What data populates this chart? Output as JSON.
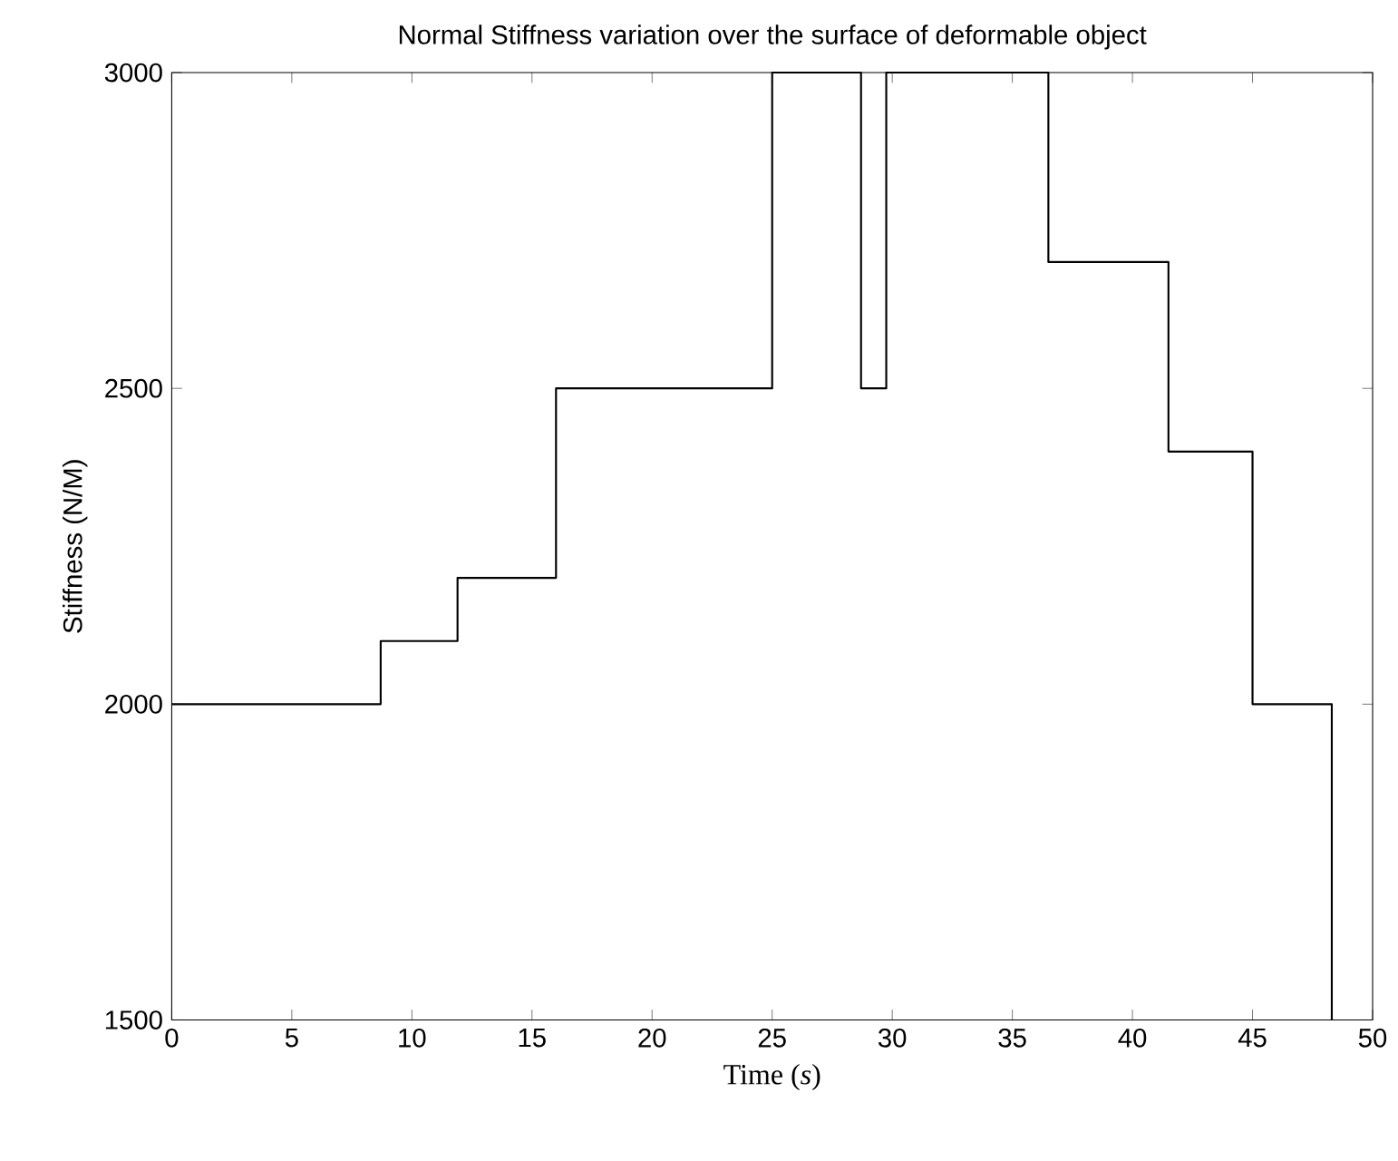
{
  "chart_data": {
    "type": "step",
    "title": "Normal Stiffness variation over the surface of deformable object",
    "xlabel": "Time (*s*)",
    "ylabel": "Stiffness (N/M)",
    "x": [
      0,
      8.7,
      11.9,
      16,
      25,
      28.7,
      29.75,
      36.5,
      41.5,
      45,
      48.3
    ],
    "values": [
      2000,
      2100,
      2200,
      2500,
      3000,
      2500,
      3000,
      2700,
      2400,
      2000,
      1500
    ],
    "color": "#000000",
    "xlim": [
      0,
      50
    ],
    "xticks": [
      0,
      5,
      10,
      15,
      20,
      25,
      30,
      35,
      40,
      45,
      50
    ],
    "ylim": [
      1500,
      3000
    ],
    "yticks": [
      1500,
      2000,
      2500,
      3000
    ]
  }
}
